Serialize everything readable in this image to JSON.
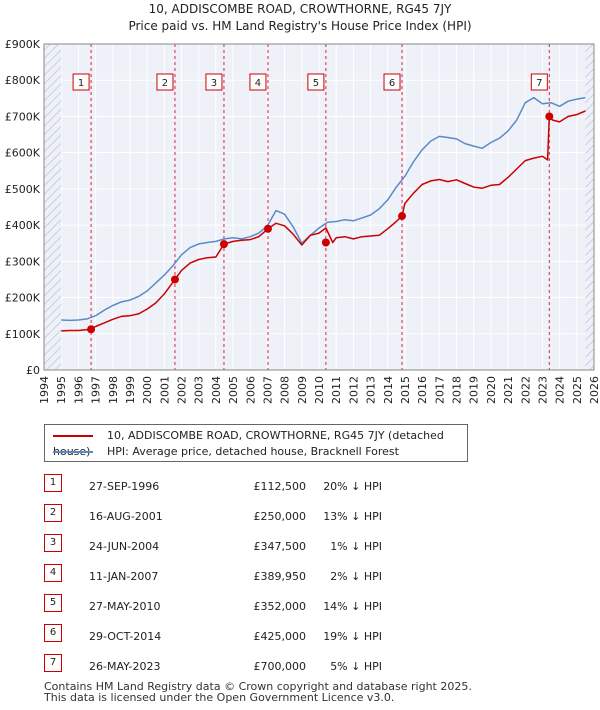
{
  "chart_data": {
    "type": "line",
    "title": "10, ADDISCOMBE ROAD, CROWTHORNE, RG45 7JY",
    "subtitle": "Price paid vs. HM Land Registry's House Price Index (HPI)",
    "xlim": [
      1994,
      2026
    ],
    "ylim": [
      0,
      900000
    ],
    "yticks": [
      0,
      100000,
      200000,
      300000,
      400000,
      500000,
      600000,
      700000,
      800000,
      900000
    ],
    "ytick_labels": [
      "£0",
      "£100K",
      "£200K",
      "£300K",
      "£400K",
      "£500K",
      "£600K",
      "£700K",
      "£800K",
      "£900K"
    ],
    "xticks": [
      1994,
      1995,
      1996,
      1997,
      1998,
      1999,
      2000,
      2001,
      2002,
      2003,
      2004,
      2005,
      2006,
      2007,
      2008,
      2009,
      2010,
      2011,
      2012,
      2013,
      2014,
      2015,
      2016,
      2017,
      2018,
      2019,
      2020,
      2021,
      2022,
      2023,
      2024,
      2025,
      2026
    ],
    "xtick_labels": [
      "1994",
      "1995",
      "1996",
      "1997",
      "1998",
      "1999",
      "2000",
      "2001",
      "2002",
      "2003",
      "2004",
      "2005",
      "2006",
      "2007",
      "2008",
      "2009",
      "2010",
      "2011",
      "2012",
      "2013",
      "2014",
      "2015",
      "2016",
      "2017",
      "2018",
      "2019",
      "2020",
      "2021",
      "2022",
      "2023",
      "2024",
      "2025",
      "2026"
    ],
    "data_range": [
      1995.0,
      2025.5
    ],
    "series": [
      {
        "name": "10, ADDISCOMBE ROAD, CROWTHORNE, RG45 7JY (detached house)",
        "color": "#cc0000",
        "x": [
          1995.0,
          1995.5,
          1996.0,
          1996.74,
          1997.0,
          1997.5,
          1998.0,
          1998.5,
          1999.0,
          1999.5,
          2000.0,
          2000.5,
          2001.0,
          2001.62,
          2002.0,
          2002.5,
          2003.0,
          2003.5,
          2004.0,
          2004.47,
          2005.0,
          2005.5,
          2006.0,
          2006.5,
          2007.03,
          2007.5,
          2008.0,
          2008.5,
          2009.0,
          2009.5,
          2010.0,
          2010.4,
          2010.8,
          2011.0,
          2011.5,
          2012.0,
          2012.5,
          2013.0,
          2013.5,
          2014.0,
          2014.5,
          2014.83,
          2015.0,
          2015.5,
          2016.0,
          2016.5,
          2017.0,
          2017.5,
          2018.0,
          2018.5,
          2019.0,
          2019.5,
          2020.0,
          2020.5,
          2021.0,
          2021.5,
          2022.0,
          2022.5,
          2023.0,
          2023.3,
          2023.4,
          2023.6,
          2024.0,
          2024.5,
          2025.0,
          2025.5
        ],
        "y": [
          108000,
          109000,
          109000,
          112500,
          120000,
          130000,
          140000,
          148000,
          150000,
          155000,
          168000,
          185000,
          210000,
          250000,
          275000,
          295000,
          305000,
          310000,
          312000,
          347500,
          355000,
          358000,
          360000,
          368000,
          389950,
          405000,
          398000,
          375000,
          345000,
          372000,
          378000,
          392000,
          352000,
          365000,
          368000,
          362000,
          368000,
          370000,
          372000,
          390000,
          410000,
          425000,
          460000,
          488000,
          512000,
          522000,
          526000,
          520000,
          525000,
          515000,
          505000,
          502000,
          510000,
          512000,
          532000,
          555000,
          578000,
          585000,
          590000,
          580000,
          700000,
          690000,
          685000,
          700000,
          705000,
          715000
        ]
      },
      {
        "name": "HPI: Average price, detached house, Bracknell Forest",
        "color": "#5b8ac9",
        "x": [
          1995.0,
          1995.5,
          1996.0,
          1996.5,
          1997.0,
          1997.5,
          1998.0,
          1998.5,
          1999.0,
          1999.5,
          2000.0,
          2000.5,
          2001.0,
          2001.5,
          2002.0,
          2002.5,
          2003.0,
          2003.5,
          2004.0,
          2004.5,
          2005.0,
          2005.5,
          2006.0,
          2006.5,
          2007.0,
          2007.5,
          2008.0,
          2008.5,
          2009.0,
          2009.5,
          2010.0,
          2010.5,
          2011.0,
          2011.5,
          2012.0,
          2012.5,
          2013.0,
          2013.5,
          2014.0,
          2014.5,
          2015.0,
          2015.5,
          2016.0,
          2016.5,
          2017.0,
          2017.5,
          2018.0,
          2018.5,
          2019.0,
          2019.5,
          2020.0,
          2020.5,
          2021.0,
          2021.5,
          2022.0,
          2022.5,
          2023.0,
          2023.5,
          2024.0,
          2024.5,
          2025.0,
          2025.5
        ],
        "y": [
          138000,
          137000,
          138000,
          141000,
          150000,
          165000,
          178000,
          188000,
          193000,
          203000,
          218000,
          240000,
          262000,
          288000,
          318000,
          338000,
          348000,
          352000,
          355000,
          362000,
          365000,
          362000,
          368000,
          378000,
          398000,
          440000,
          430000,
          395000,
          350000,
          372000,
          392000,
          408000,
          410000,
          415000,
          412000,
          420000,
          428000,
          445000,
          470000,
          505000,
          535000,
          575000,
          608000,
          632000,
          645000,
          642000,
          638000,
          625000,
          618000,
          612000,
          628000,
          640000,
          660000,
          690000,
          738000,
          752000,
          735000,
          738000,
          728000,
          742000,
          748000,
          752000
        ]
      }
    ],
    "sales": [
      {
        "id": "1",
        "x": 1996.74,
        "y": 112500
      },
      {
        "id": "2",
        "x": 2001.62,
        "y": 250000
      },
      {
        "id": "3",
        "x": 2004.47,
        "y": 347500
      },
      {
        "id": "4",
        "x": 2007.03,
        "y": 389950
      },
      {
        "id": "5",
        "x": 2010.4,
        "y": 352000
      },
      {
        "id": "6",
        "x": 2014.83,
        "y": 425000
      },
      {
        "id": "7",
        "x": 2023.4,
        "y": 700000
      }
    ]
  },
  "legend": {
    "property_label": "10, ADDISCOMBE ROAD, CROWTHORNE, RG45 7JY (detached house)",
    "hpi_label": "HPI: Average price, detached house, Bracknell Forest"
  },
  "transactions": [
    {
      "num": "1",
      "date": "27-SEP-1996",
      "price": "£112,500",
      "hpi": "20% ↓ HPI"
    },
    {
      "num": "2",
      "date": "16-AUG-2001",
      "price": "£250,000",
      "hpi": "13% ↓ HPI"
    },
    {
      "num": "3",
      "date": "24-JUN-2004",
      "price": "£347,500",
      "hpi": "1% ↓ HPI"
    },
    {
      "num": "4",
      "date": "11-JAN-2007",
      "price": "£389,950",
      "hpi": "2% ↓ HPI"
    },
    {
      "num": "5",
      "date": "27-MAY-2010",
      "price": "£352,000",
      "hpi": "14% ↓ HPI"
    },
    {
      "num": "6",
      "date": "29-OCT-2014",
      "price": "£425,000",
      "hpi": "19% ↓ HPI"
    },
    {
      "num": "7",
      "date": "26-MAY-2023",
      "price": "£700,000",
      "hpi": "5% ↓ HPI"
    }
  ],
  "footer": {
    "line1": "Contains HM Land Registry data © Crown copyright and database right 2025.",
    "line2": "This data is licensed under the Open Government Licence v3.0."
  }
}
